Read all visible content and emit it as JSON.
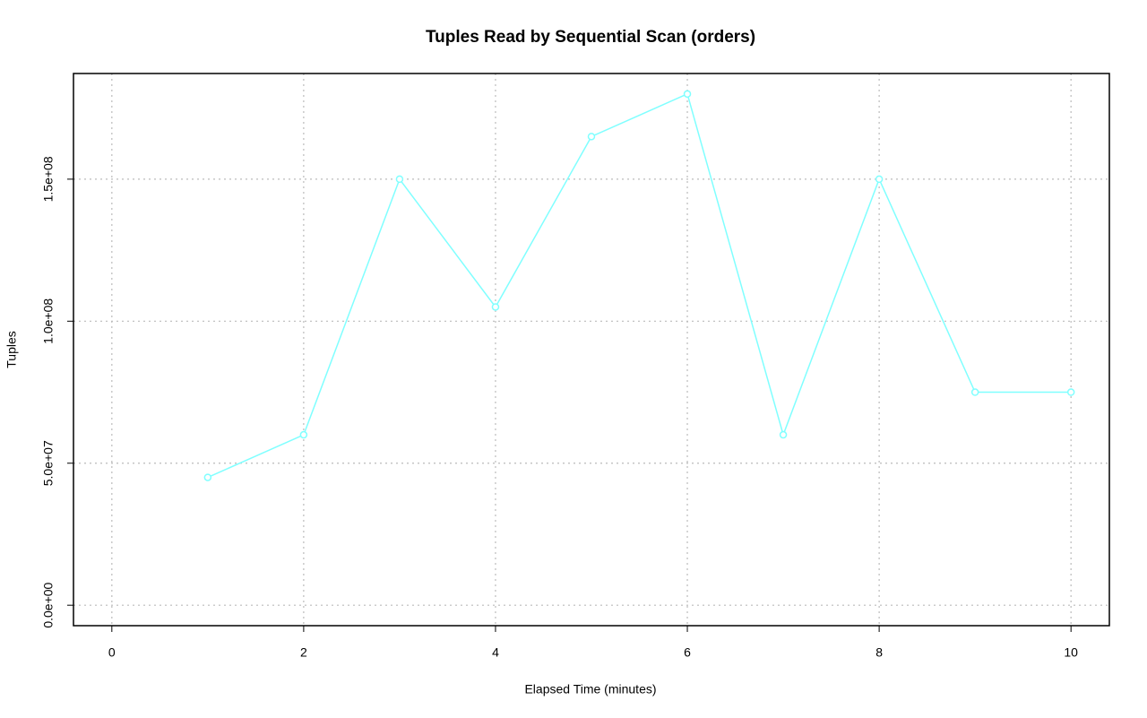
{
  "chart_data": {
    "type": "line",
    "title": "Tuples Read by Sequential Scan (orders)",
    "xlabel": "Elapsed Time (minutes)",
    "ylabel": "Tuples",
    "x": [
      1,
      2,
      3,
      4,
      5,
      6,
      7,
      8,
      9,
      10
    ],
    "values": [
      45000000,
      60000000,
      150000000,
      105000000,
      165000000,
      180000000,
      60000000,
      150000000,
      75000000,
      75000000
    ],
    "color": "#80ffff",
    "xlim": [
      -0.4,
      10.4
    ],
    "xticks": [
      0,
      2,
      4,
      6,
      8,
      10
    ],
    "ylim": [
      -7200000,
      187200000
    ],
    "yticks": [
      {
        "value": 0,
        "label": "0.0e+00"
      },
      {
        "value": 50000000,
        "label": "5.0e+07"
      },
      {
        "value": 100000000,
        "label": "1.0e+08"
      },
      {
        "value": 150000000,
        "label": "1.5e+08"
      }
    ],
    "grid": true
  }
}
